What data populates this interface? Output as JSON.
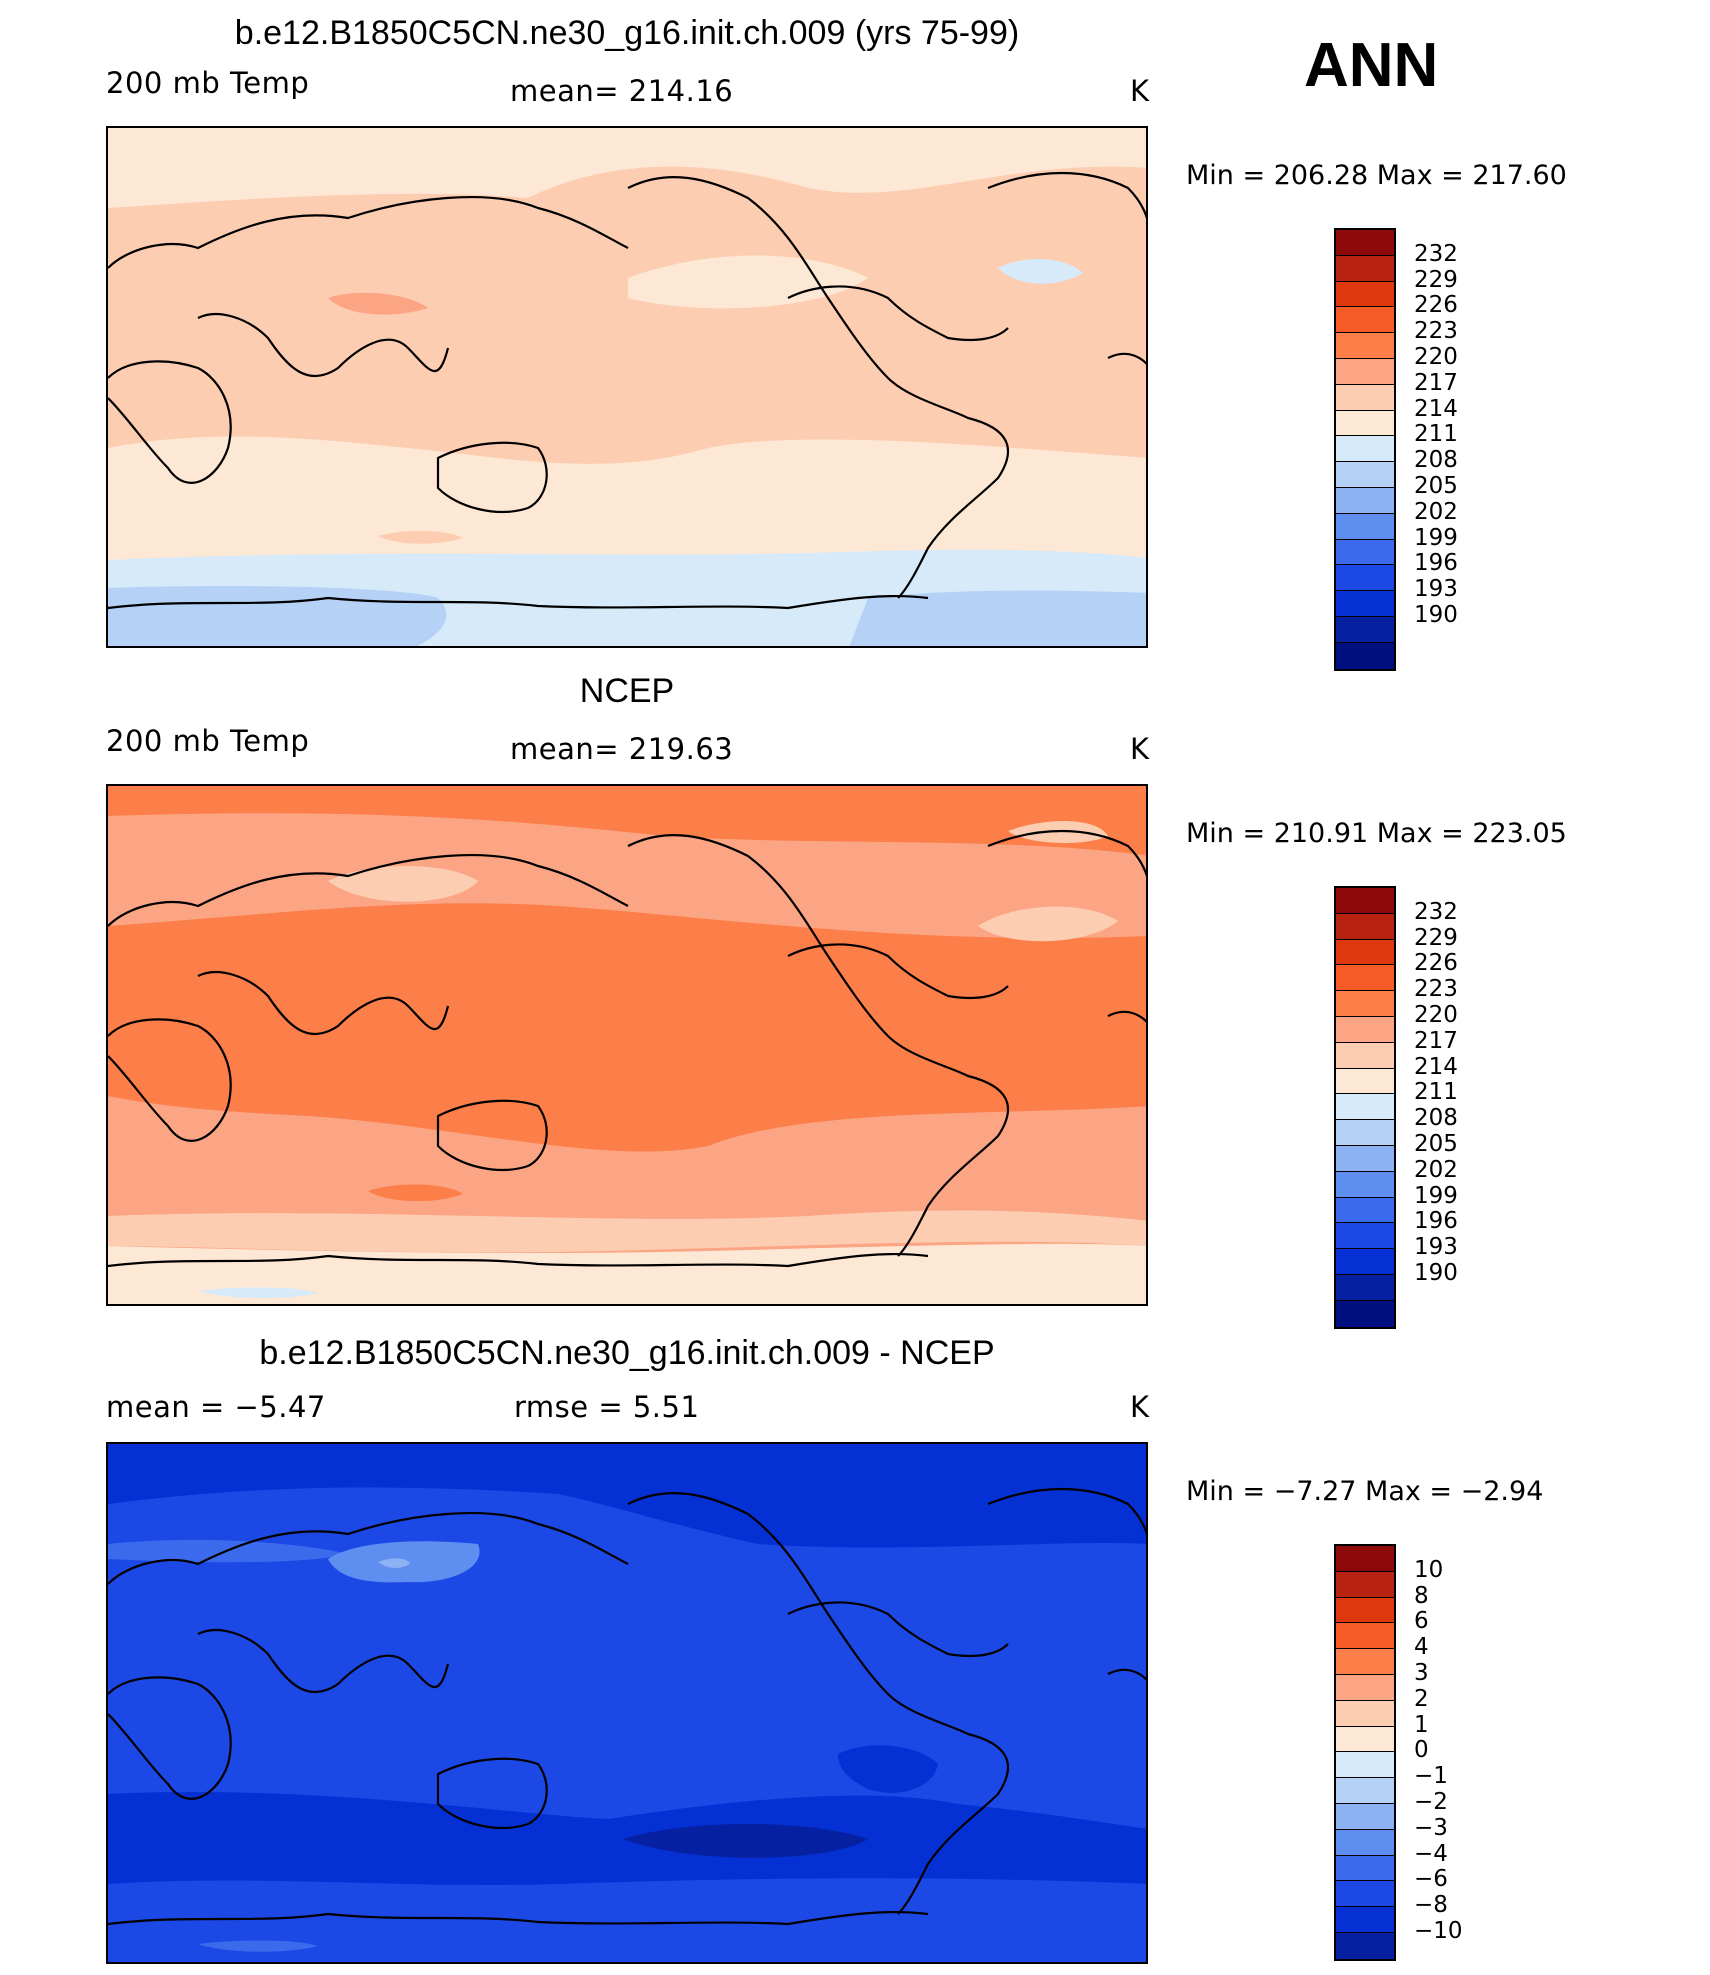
{
  "season": "ANN",
  "palette": {
    "warm": [
      "#8e0a0a",
      "#b82211",
      "#e0380e",
      "#f55b27",
      "#fc7e48",
      "#fca585",
      "#fdcdb2",
      "#fde8d6"
    ],
    "cool": [
      "#d6eaf9",
      "#b5d1f6",
      "#8db2f4",
      "#5e8ef0",
      "#3b6bec",
      "#1c48e6",
      "#0430d4",
      "#0620a2",
      "#000f80"
    ],
    "anom": [
      "#8e0a0a",
      "#b82211",
      "#e0380e",
      "#f55b27",
      "#fc7e48",
      "#fca585",
      "#fdcdb2",
      "#fde8d6",
      "#d6eaf9",
      "#b5d1f6",
      "#8db2f4",
      "#5e8ef0",
      "#3b6bec",
      "#1c48e6",
      "#0430d4",
      "#0620a2"
    ]
  },
  "panels": [
    {
      "title": "b.e12.B1850C5CN.ne30_g16.init.ch.009 (yrs 75-99)",
      "left_label": "200 mb Temp",
      "center_label": "mean= 214.16",
      "units": "K",
      "min_max": "Min = 206.28  Max = 217.60",
      "colorbar_labels": [
        "232",
        "229",
        "226",
        "223",
        "220",
        "217",
        "214",
        "211",
        "208",
        "205",
        "202",
        "199",
        "196",
        "193",
        "190"
      ]
    },
    {
      "title": "NCEP",
      "left_label": "200 mb Temp",
      "center_label": "mean= 219.63",
      "units": "K",
      "min_max": "Min = 210.91  Max = 223.05",
      "colorbar_labels": [
        "232",
        "229",
        "226",
        "223",
        "220",
        "217",
        "214",
        "211",
        "208",
        "205",
        "202",
        "199",
        "196",
        "193",
        "190"
      ]
    },
    {
      "title": "b.e12.B1850C5CN.ne30_g16.init.ch.009 - NCEP",
      "left_label": "mean =   −5.47",
      "center_label": "rmse =    5.51",
      "units": "K",
      "min_max": "Min =   −7.27  Max =   −2.94",
      "colorbar_labels": [
        "10",
        "8",
        "6",
        "4",
        "3",
        "2",
        "1",
        "0",
        "−1",
        "−2",
        "−3",
        "−4",
        "−6",
        "−8",
        "−10"
      ]
    }
  ]
}
